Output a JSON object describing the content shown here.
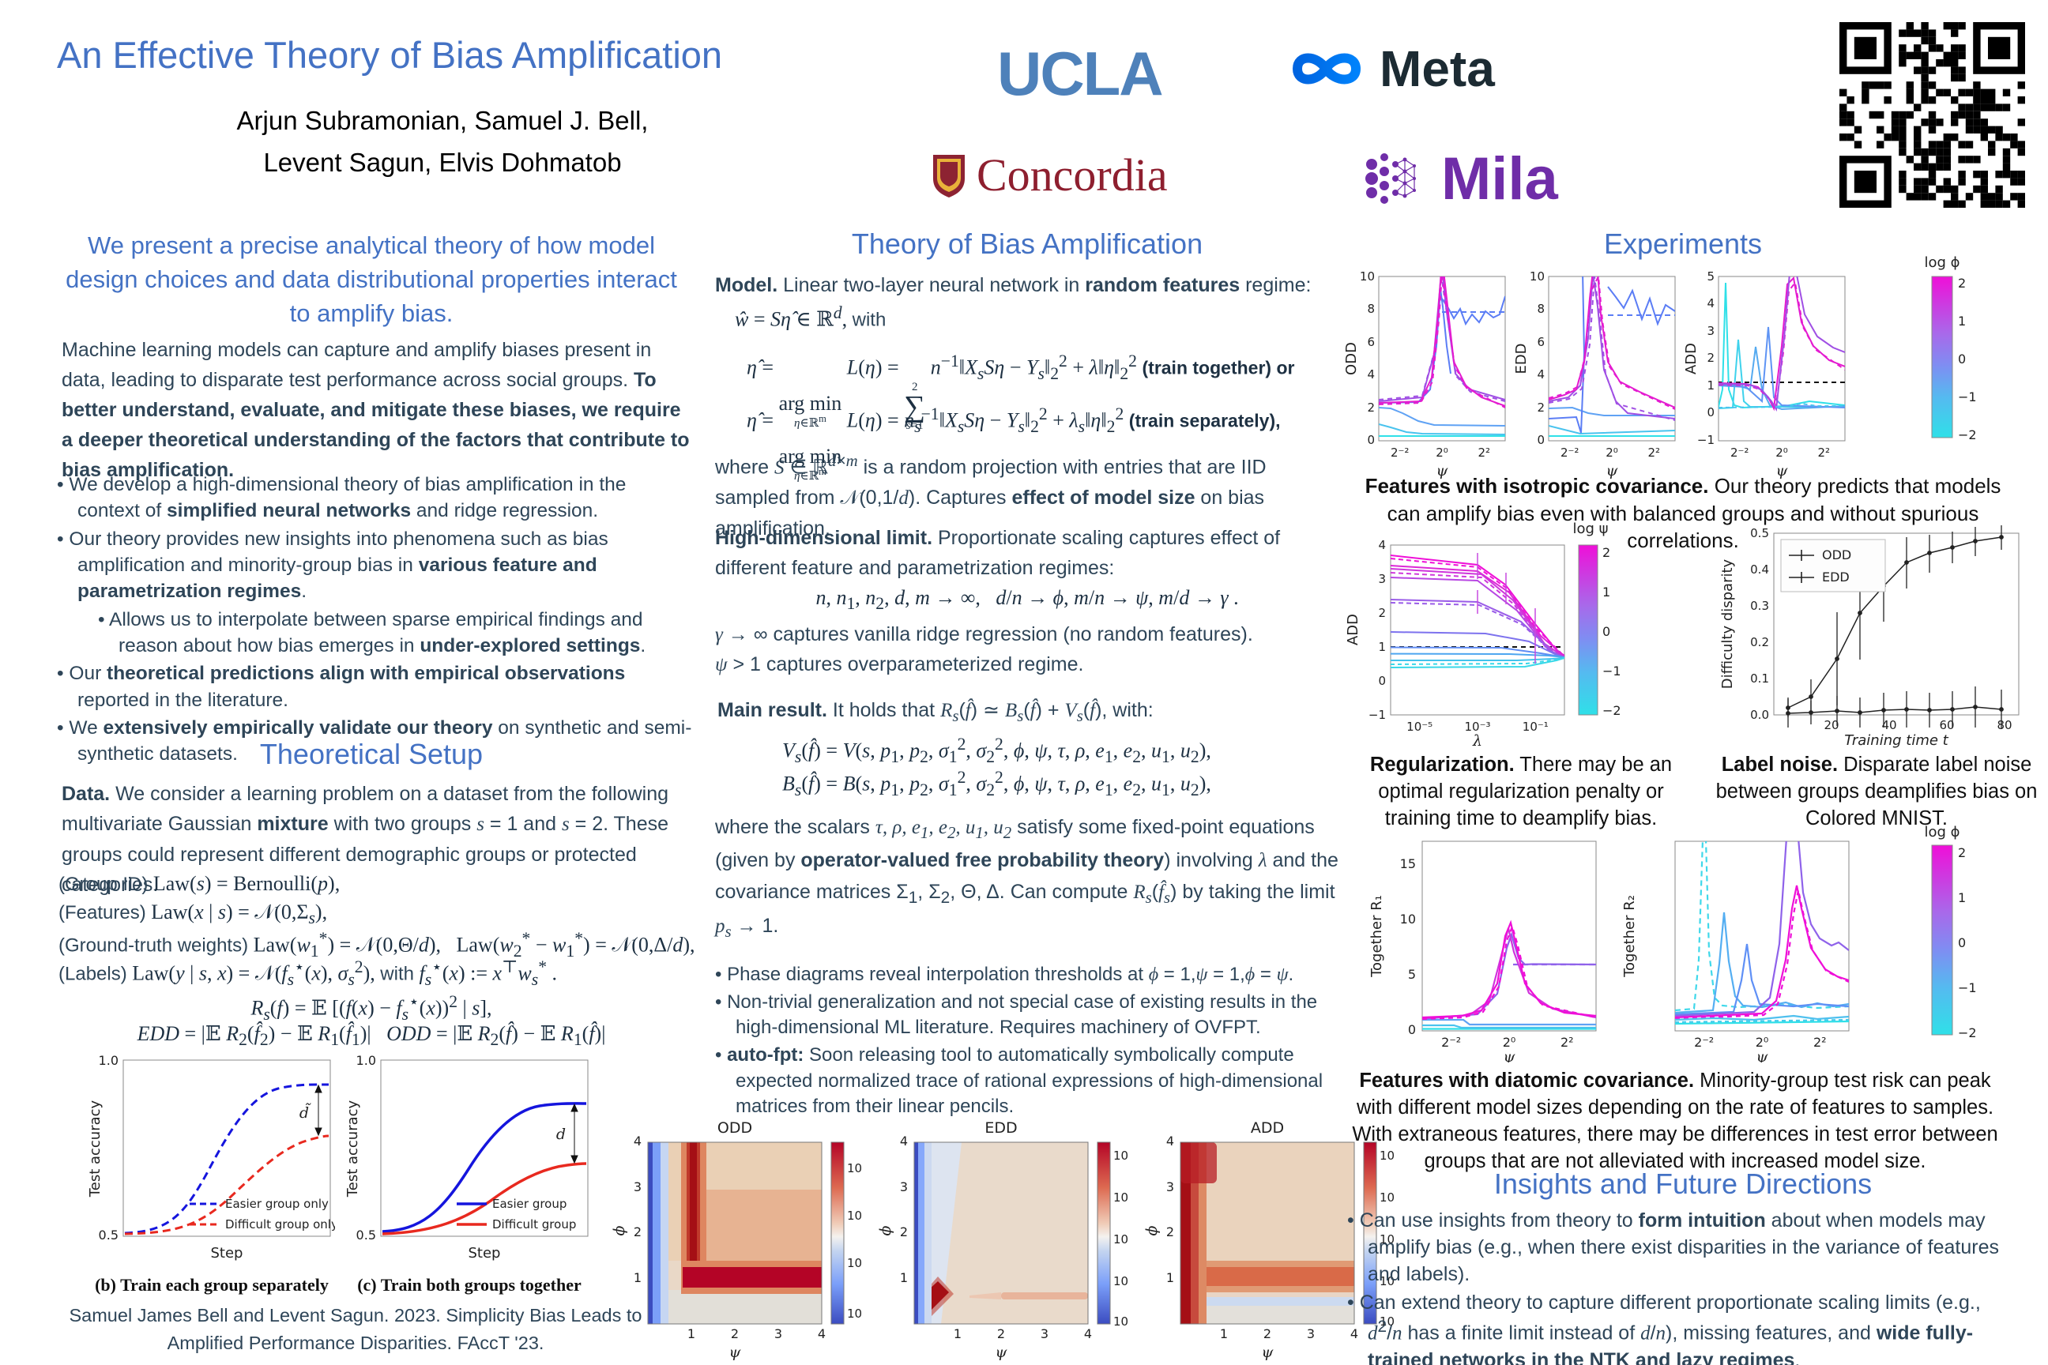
{
  "header": {
    "title": "An Effective Theory of Bias Amplification",
    "authors1": "Arjun Subramonian, Samuel J. Bell,",
    "authors2": "Levent Sagun, Elvis Dohmatob",
    "logo_ucla": "UCLA",
    "logo_meta": "Meta",
    "logo_concordia": "Concordia",
    "logo_mila": "Mila"
  },
  "left": {
    "abstract": "We present a precise analytical theory of how model design choices and data distributional properties interact to amplify bias.",
    "intro": "Machine learning models can capture and amplify biases present in data, leading to disparate test performance across social groups. <b>To better understand, evaluate, and mitigate these biases, we require a deeper theoretical understanding of the factors that contribute to bias amplification.</b>",
    "bullets": [
      "We develop a high-dimensional theory of bias amplification in the context of <b>simplified neural networks</b> and ridge regression.",
      "Our theory provides new insights into phenomena such as bias amplification and minority-group bias in <b>various feature and parametrization regimes</b>.",
      "Allows us to interpolate between sparse empirical findings and reason about how bias emerges in <b>under-explored settings</b>.",
      "Our <b>theoretical predictions align with empirical observations</b> reported in the literature.",
      "We <b>extensively empirically validate our theory</b> on synthetic and semi-synthetic datasets."
    ],
    "setup_heading": "Theoretical Setup",
    "data_par": "<b>Data.</b> We consider a learning problem on a dataset from the following multivariate Gaussian <b>mixture</b> with two groups <span class=\"m\">s</span> = 1 and <span class=\"m\">s</span> = 2. These groups could represent different demographic groups or protected categories.",
    "eq_group": "<span class=\"lab2\">(Group ID)</span> Law(<i>s</i>) = Bernoulli(<i>p</i>),",
    "eq_features": "<span class=\"lab2\">(Features)</span> Law(<i>x</i> | <i>s</i>) = 𝒩(0,Σ<sub><i>s</i></sub>),",
    "eq_weights": "<span class=\"lab2\">(Ground-truth weights)</span> Law(<i>w</i><sub>1</sub><sup>*</sup>) = 𝒩(0,Θ/<i>d</i>),&nbsp;&nbsp;&nbsp;Law(<i>w</i><sub>2</sub><sup>*</sup> − <i>w</i><sub>1</sub><sup>*</sup>) = 𝒩(0,Δ/<i>d</i>),",
    "eq_labels": "<span class=\"lab2\">(Labels)</span> Law(<i>y</i> | <i>s</i>, <i>x</i>) = 𝒩(<i>f</i><sub><i>s</i></sub><sup>⋆</sup>(<i>x</i>), <i>σ</i><sub><i>s</i></sub><sup>2</sup>), <span class=\"lab2\">with</span> <i>f</i><sub><i>s</i></sub><sup>⋆</sup>(<i>x</i>) := <i>x</i><sup>⊤</sup><i>w</i><sub><i>s</i></sub><sup>*</sup> .",
    "eq_risk": "<i>R</i><sub><i>s</i></sub>(<i>f</i>) = 𝔼 [(<i>f</i>(<i>x</i>) − <i>f</i><sub><i>s</i></sub><sup>⋆</sup>(<i>x</i>))<sup>2</sup> | <i>s</i>],",
    "eq_disparities": "<i>EDD</i> = |𝔼 <i>R</i><sub>2</sub>(<i>f̂</i><sub>2</sub>) − 𝔼 <i>R</i><sub>1</sub>(<i>f̂</i><sub>1</sub>)|&nbsp;&nbsp;&nbsp;<i>ODD</i> = |𝔼 <i>R</i><sub>2</sub>(<i>f̂</i>) − 𝔼 <i>R</i><sub>1</sub>(<i>f̂</i>)|",
    "fig": {
      "ytop": "1.0",
      "ybot": "0.5",
      "ylabel": "Test accuracy",
      "xlabel": "Step",
      "d_tilde": "d̃",
      "d": "d",
      "legend_sep_1": "Easier group only",
      "legend_sep_2": "Difficult group only",
      "legend_tog_1": "Easier group",
      "legend_tog_2": "Difficult group",
      "cap_b": "(b) Train each group separately",
      "cap_c": "(c) Train both groups together"
    },
    "citation": "Samuel James Bell and Levent Sagun. 2023. Simplicity Bias Leads to Amplified Performance Disparities. FAccT '23."
  },
  "middle": {
    "heading": "Theory of Bias Amplification",
    "model_par": "<b>Model.</b> Linear two-layer neural network in <b>random features</b> regime:",
    "eq_w": "<i>ŵ</i> = <i>Sη̂</i> ∈ ℝ<sup><i>d</i></sup>, <span class=\"lab2\">with</span>",
    "eq_together": "<i>η̂</i> = <span class=\"stk\"><span class=\"sm\">&nbsp;</span><span>arg min</span><span class=\"sm\"><i>η</i>∈ℝ<sup>m</sup></span></span> <i>L</i>(<i>η</i>) = <span class=\"stk\"><span class=\"sm\">2</span><span class=\"big\">∑</span><span class=\"sm\"><i>s</i>=1</span></span> <i>n</i><sup>−1</sup>‖<i>X</i><sub><i>s</i></sub><i>Sη</i> − <i>Y</i><sub><i>s</i></sub>‖<sub>2</sub><sup>2</sup> + <i>λ</i>‖<i>η</i>‖<sub>2</sub><sup>2</sup> <span class=\"lab\">(train together) or</span>",
    "eq_separately": "<i>η̂</i> = <span class=\"stk\"><span class=\"sm\">&nbsp;</span><span>arg min</span><span class=\"sm\"><i>η</i>∈ℝ<sup>m</sup></span></span> <i>L</i>(<i>η</i>) = <i>n</i><sub><i>s</i></sub><sup>−1</sup>‖<i>X</i><sub><i>s</i></sub><i>Sη</i> − <i>Y</i><sub><i>s</i></sub>‖<sub>2</sub><sup>2</sup> + <i>λ</i><sub><i>s</i></sub>‖<i>η</i>‖<sub>2</sub><sup>2</sup> <span class=\"lab\">(train separately),</span>",
    "where_par": "where <span class=\"m\">S</span> ∈ ℝ<sup><span class=\"m\">d</span>×<span class=\"m\">m</span></sup> is a random projection with entries that are IID sampled from 𝒩(0,1/<span class=\"m\">d</span>). Captures <b>effect of model size</b> on bias amplification.",
    "hd_par": "<b>High-dimensional limit.</b> Proportionate scaling captures effect of different feature and parametrization regimes:",
    "hd_eq": "<i>n</i>, <i>n</i><sub>1</sub>, <i>n</i><sub>2</sub>, <i>d</i>, <i>m</i> → ∞,&nbsp;&nbsp;&nbsp;<i>d</i>/<i>n</i> → <i>ϕ</i>, <i>m</i>/<i>n</i> → <i>ψ</i>, <i>m</i>/<i>d</i> → <i>γ</i> .",
    "hd_line1": "<span class=\"m\">γ</span> → ∞ captures vanilla ridge regression (no random features).",
    "hd_line2": "<span class=\"m\">ψ</span> > 1 captures overparameterized regime.",
    "main_par": "<b>Main result.</b> It holds that <span class=\"m\">R<sub>s</sub></span>(<span class=\"m\">f̂</span>) ≃ <span class=\"m\">B<sub>s</sub></span>(<span class=\"m\">f̂</span>) + <span class=\"m\">V<sub>s</sub></span>(<span class=\"m\">f̂</span>), with:",
    "eq_v": "<i>V</i><sub><i>s</i></sub>(<i>f̂</i>) = <i>V</i>(<i>s</i>, <i>p</i><sub>1</sub>, <i>p</i><sub>2</sub>, <i>σ</i><sub>1</sub><sup>2</sup>, <i>σ</i><sub>2</sub><sup>2</sup>, <i>ϕ</i>, <i>ψ</i>, <i>τ</i>, <i>ρ</i>, <i>e</i><sub>1</sub>, <i>e</i><sub>2</sub>, <i>u</i><sub>1</sub>, <i>u</i><sub>2</sub>),",
    "eq_b": "<i>B</i><sub><i>s</i></sub>(<i>f̂</i>) = <i>B</i>(<i>s</i>, <i>p</i><sub>1</sub>, <i>p</i><sub>2</sub>, <i>σ</i><sub>1</sub><sup>2</sup>, <i>σ</i><sub>2</sub><sup>2</sup>, <i>ϕ</i>, <i>ψ</i>, <i>τ</i>, <i>ρ</i>, <i>e</i><sub>1</sub>, <i>e</i><sub>2</sub>, <i>u</i><sub>1</sub>, <i>u</i><sub>2</sub>),",
    "scalars_par": "where the scalars <span class=\"m\">τ, ρ, e<sub>1</sub>, e<sub>2</sub>, u<sub>1</sub>, u<sub>2</sub></span> satisfy some fixed-point equations (given by <b>operator-valued free probability theory</b>) involving <span class=\"m\">λ</span> and the covariance matrices Σ<sub>1</sub>, Σ<sub>2</sub>, Θ, Δ. Can compute <span class=\"m\">R<sub>s</sub></span>(<span class=\"m\">f̂<sub>s</sub></span>) by taking the limit <span class=\"m\">p<sub>s</sub></span> → 1.",
    "bullets": [
      "Phase diagrams reveal interpolation thresholds at <span class=\"m\">ϕ</span> = 1,<span class=\"m\">ψ</span> = 1,<span class=\"m\">ϕ</span> = <span class=\"m\">ψ</span>.",
      "Non-trivial generalization and not special case of existing results in the high-dimensional ML literature. Requires machinery of OVFPT.",
      "<b>auto-fpt:</b> Soon releasing tool to automatically symbolically compute expected normalized trace of rational expressions of high-dimensional matrices from their linear pencils."
    ],
    "hm": {
      "title_odd": "ODD",
      "title_edd": "EDD",
      "title_add": "ADD",
      "xlabel": "ψ",
      "ylabel": "ϕ",
      "xticks": [
        "1",
        "2",
        "3",
        "4"
      ],
      "yticks": [
        "4",
        "3",
        "2",
        "1"
      ],
      "cbar_odd": [
        "10³",
        "10¹",
        "10⁻¹",
        "10⁻³"
      ],
      "cbar_edd": [
        "10⁴",
        "10⁰",
        "10⁻⁴",
        "10⁻⁸",
        "10⁻¹²"
      ],
      "cbar_add": [
        "10⁸",
        "10⁴",
        "10⁰",
        "10⁻⁴",
        "10⁻⁸"
      ]
    }
  },
  "right": {
    "heading": "Experiments",
    "row1": {
      "ylabel_odd": "ODD",
      "ylabel_edd": "EDD",
      "ylabel_add": "ADD",
      "yticks10": [
        "10",
        "8",
        "6",
        "4",
        "2",
        "0"
      ],
      "yticks_add": [
        "5",
        "4",
        "3",
        "2",
        "1",
        "0",
        "−1"
      ],
      "xticks": [
        "2⁻²",
        "2⁰",
        "2²"
      ],
      "xlabel": "ψ",
      "cbar_label": "log ϕ",
      "cbar_ticks": [
        "2",
        "1",
        "0",
        "−1",
        "−2"
      ]
    },
    "cap1": "<b>Features with isotropic covariance.</b> Our theory predicts that models can amplify bias even with balanced groups and without spurious correlations.",
    "reg": {
      "ylabel": "ADD",
      "yticks": [
        "4",
        "3",
        "2",
        "1",
        "0",
        "−1"
      ],
      "xticks": [
        "10⁻⁵",
        "10⁻³",
        "10⁻¹"
      ],
      "xlabel": "λ",
      "cbar_label": "log ψ",
      "cbar_ticks": [
        "2",
        "1",
        "0",
        "−1",
        "−2"
      ]
    },
    "noise": {
      "ylabel": "Difficulty disparity",
      "yticks": [
        "0.5",
        "0.4",
        "0.3",
        "0.2",
        "0.1",
        "0.0"
      ],
      "xticks": [
        "20",
        "40",
        "60",
        "80"
      ],
      "xlabel": "Training time t",
      "legend1": "ODD",
      "legend2": "EDD"
    },
    "cap2": "<b>Regularization.</b> There may be an optimal regularization penalty or training time to deamplify bias.",
    "cap3": "<b>Label noise.</b> Disparate label noise between groups deamplifies bias on Colored MNIST.",
    "row3": {
      "ylabel1": "Together R₁",
      "ylabel2": "Together R₂",
      "yticks": [
        "15",
        "10",
        "5",
        "0"
      ],
      "xticks": [
        "2⁻²",
        "2⁰",
        "2²"
      ],
      "xlabel": "ψ",
      "cbar_label": "log ϕ",
      "cbar_ticks": [
        "2",
        "1",
        "0",
        "−1",
        "−2"
      ]
    },
    "cap4": "<b>Features with diatomic covariance.</b> Minority-group test risk can peak with different model sizes depending on the rate of features to samples. With extraneous features, there may be differences in test error between groups that are not alleviated with increased model size.",
    "insights_heading": "Insights and Future Directions",
    "insights": [
      "Can use insights from theory to <b>form intuition</b> about when models may amplify bias (e.g., when there exist disparities in the variance of features and labels).",
      "Can extend theory to capture different proportionate scaling limits (e.g., <span class=\"m\">d</span><sup>2</sup>/<span class=\"m\">n</span> has a finite limit instead of <span class=\"m\">d</span>/<span class=\"m\">n</span>), missing features, and <b>wide fully-trained networks in the NTK and lazy regimes</b>."
    ]
  },
  "chart_data": [
    {
      "id": "train-separately",
      "type": "line",
      "title": "(b) Train each group separately",
      "xlabel": "Step",
      "ylabel": "Test accuracy",
      "ylim": [
        0.5,
        1.0
      ],
      "series": [
        {
          "name": "Easier group only",
          "style": "dashed",
          "color": "blue",
          "plateau": 0.93
        },
        {
          "name": "Difficult group only",
          "style": "dashed",
          "color": "red",
          "plateau": 0.79
        }
      ],
      "annotation": "gap d̃ between plateaus"
    },
    {
      "id": "train-together",
      "type": "line",
      "title": "(c) Train both groups together",
      "xlabel": "Step",
      "ylabel": "Test accuracy",
      "ylim": [
        0.5,
        1.0
      ],
      "series": [
        {
          "name": "Easier group",
          "style": "solid",
          "color": "blue",
          "plateau": 0.87
        },
        {
          "name": "Difficult group",
          "style": "solid",
          "color": "red",
          "plateau": 0.68
        }
      ],
      "annotation": "gap d between plateaus"
    },
    {
      "id": "phase-odd",
      "type": "heatmap",
      "title": "ODD",
      "xlabel": "ψ",
      "ylabel": "ϕ",
      "xlim": [
        0,
        4
      ],
      "ylim": [
        0,
        4
      ],
      "colorbar_ticks": [
        "10³",
        "10¹",
        "10⁻¹",
        "10⁻³"
      ],
      "description": "log-scale coolwarm map; dark-red L-shaped ridge along ψ≈1 (ϕ>1) and ϕ≈1 (ψ>1); blue band at ψ≈0"
    },
    {
      "id": "phase-edd",
      "type": "heatmap",
      "title": "EDD",
      "xlabel": "ψ",
      "ylabel": "ϕ",
      "xlim": [
        0,
        4
      ],
      "ylim": [
        0,
        4
      ],
      "colorbar_ticks": [
        "10⁴",
        "10⁰",
        "10⁻⁴",
        "10⁻⁸",
        "10⁻¹²"
      ],
      "description": "mostly neutral; blue bands at small ψ; dark-red blob near (ψ≈0.4, ϕ≈0.4); faint warm streak at ϕ≈0.6"
    },
    {
      "id": "phase-add",
      "type": "heatmap",
      "title": "ADD",
      "xlabel": "ψ",
      "ylabel": "ϕ",
      "xlim": [
        0,
        4
      ],
      "ylim": [
        0,
        4
      ],
      "colorbar_ticks": [
        "10⁸",
        "10⁴",
        "10⁰",
        "10⁻⁴",
        "10⁻⁸"
      ],
      "description": "dark-red band at small ψ full height; warm band along ϕ≈1; light-blue band at ϕ≈0.5"
    },
    {
      "id": "exp-odd",
      "type": "line",
      "xlabel": "ψ",
      "ylabel": "ODD",
      "xticks": [
        "2⁻²",
        "2⁰",
        "2²"
      ],
      "ylim": [
        0,
        10
      ],
      "colorbar": "log ϕ in [−2,2]",
      "description": "curves colored by log ϕ; magenta curves peak sharply near ψ=1; blue curve peaks ~9 then settles ~7.7; cyan curves near 0"
    },
    {
      "id": "exp-edd",
      "type": "line",
      "xlabel": "ψ",
      "ylabel": "EDD",
      "xticks": [
        "2⁻²",
        "2⁰",
        "2²"
      ],
      "ylim": [
        0,
        10
      ],
      "colorbar": "log ϕ in [−2,2]",
      "description": "magenta peak near ψ≈0.7; blue noisy plateau ~7-9 for ψ>1"
    },
    {
      "id": "exp-add",
      "type": "line",
      "xlabel": "ψ",
      "ylabel": "ADD",
      "xticks": [
        "2⁻²",
        "2⁰",
        "2²"
      ],
      "ylim": [
        -1,
        5
      ],
      "colorbar": "log ϕ in [−2,2]",
      "description": "dashed reference line at ADD=1; cyan spikes at small ψ (~4.7); magenta dips to 0 near ψ≈0.6 then peaks ~4.6 at ψ≈1.3 and decays"
    },
    {
      "id": "regularization",
      "type": "line",
      "xlabel": "λ",
      "ylabel": "ADD",
      "xticks": [
        "10⁻⁵",
        "10⁻³",
        "10⁻¹"
      ],
      "ylim": [
        -1,
        4
      ],
      "colorbar": "log ψ in [−2,2]",
      "description": "fan of near-horizontal curves (0.4 to 3.7) converging toward ~0.75 at large λ; dashed line at ADD=1; error bars at sampled λ"
    },
    {
      "id": "label-noise",
      "type": "scatter",
      "xlabel": "Training time t",
      "ylabel": "Difficulty disparity",
      "xticks": [
        20,
        40,
        60,
        80
      ],
      "ylim": [
        0,
        0.5
      ],
      "series": [
        {
          "name": "EDD",
          "x": [
            5,
            13,
            22,
            30,
            38,
            46,
            54,
            62,
            70,
            79
          ],
          "y": [
            0.02,
            0.05,
            0.155,
            0.28,
            0.355,
            0.42,
            0.445,
            0.46,
            0.475,
            0.49
          ]
        },
        {
          "name": "ODD",
          "x": [
            5,
            13,
            22,
            30,
            38,
            46,
            54,
            62,
            70,
            79
          ],
          "y": [
            0.005,
            0.005,
            0.01,
            0.005,
            0.01,
            0.015,
            0.01,
            0.015,
            0.02,
            0.015
          ]
        }
      ],
      "description": "error bars on all points"
    },
    {
      "id": "together-r1",
      "type": "line",
      "xlabel": "ψ",
      "ylabel": "Together R₁",
      "xticks": [
        "2⁻²",
        "2⁰",
        "2²"
      ],
      "ylim": [
        0,
        17
      ],
      "colorbar": "log ϕ in [−2,2]",
      "description": "magenta peaks ~9.7 at ψ≈1 then decays; purple settles ~6; blue/cyan flat ≤1"
    },
    {
      "id": "together-r2",
      "type": "line",
      "xlabel": "ψ",
      "ylabel": "Together R₂",
      "xticks": [
        "2⁻²",
        "2⁰",
        "2²"
      ],
      "colorbar": "log ϕ in [−2,2]",
      "description": "cyan spike at ψ≈2⁻²; blue spikes at ψ≈0.35 and 0.6; magenta/purple broad clipped peak near ψ≈1 with decaying tail"
    }
  ]
}
